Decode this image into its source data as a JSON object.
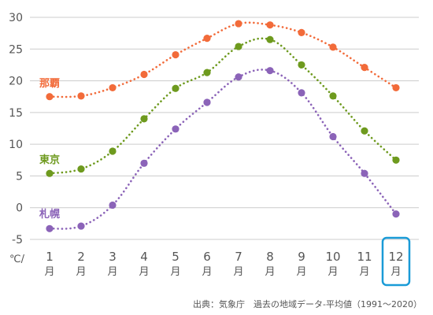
{
  "chart_data": {
    "type": "line",
    "categories": [
      "1",
      "2",
      "3",
      "4",
      "5",
      "6",
      "7",
      "8",
      "9",
      "10",
      "11",
      "12"
    ],
    "category_unit": "月",
    "y_unit_label": "℃/",
    "ylim": [
      -5,
      30
    ],
    "yticks": [
      30,
      25,
      20,
      15,
      10,
      5,
      0,
      -5
    ],
    "grid": true,
    "highlighted_category": "12",
    "highlight_color": "#1a9bd7",
    "series": [
      {
        "name": "那覇",
        "color": "#f26b3a",
        "values": [
          17.5,
          17.6,
          18.9,
          21.0,
          24.1,
          26.7,
          29.0,
          28.8,
          27.6,
          25.3,
          22.1,
          18.9
        ]
      },
      {
        "name": "東京",
        "color": "#6e9a1e",
        "values": [
          5.4,
          6.1,
          8.9,
          14.0,
          18.8,
          21.3,
          25.4,
          26.5,
          22.5,
          17.6,
          12.1,
          7.5
        ]
      },
      {
        "name": "札幌",
        "color": "#8b63b8",
        "values": [
          -3.3,
          -2.9,
          0.4,
          7.0,
          12.4,
          16.6,
          20.6,
          21.6,
          18.1,
          11.2,
          5.4,
          -1.0
        ]
      }
    ],
    "source": "出典：気象庁　過去の地域データ-平均値（1991〜2020）"
  }
}
